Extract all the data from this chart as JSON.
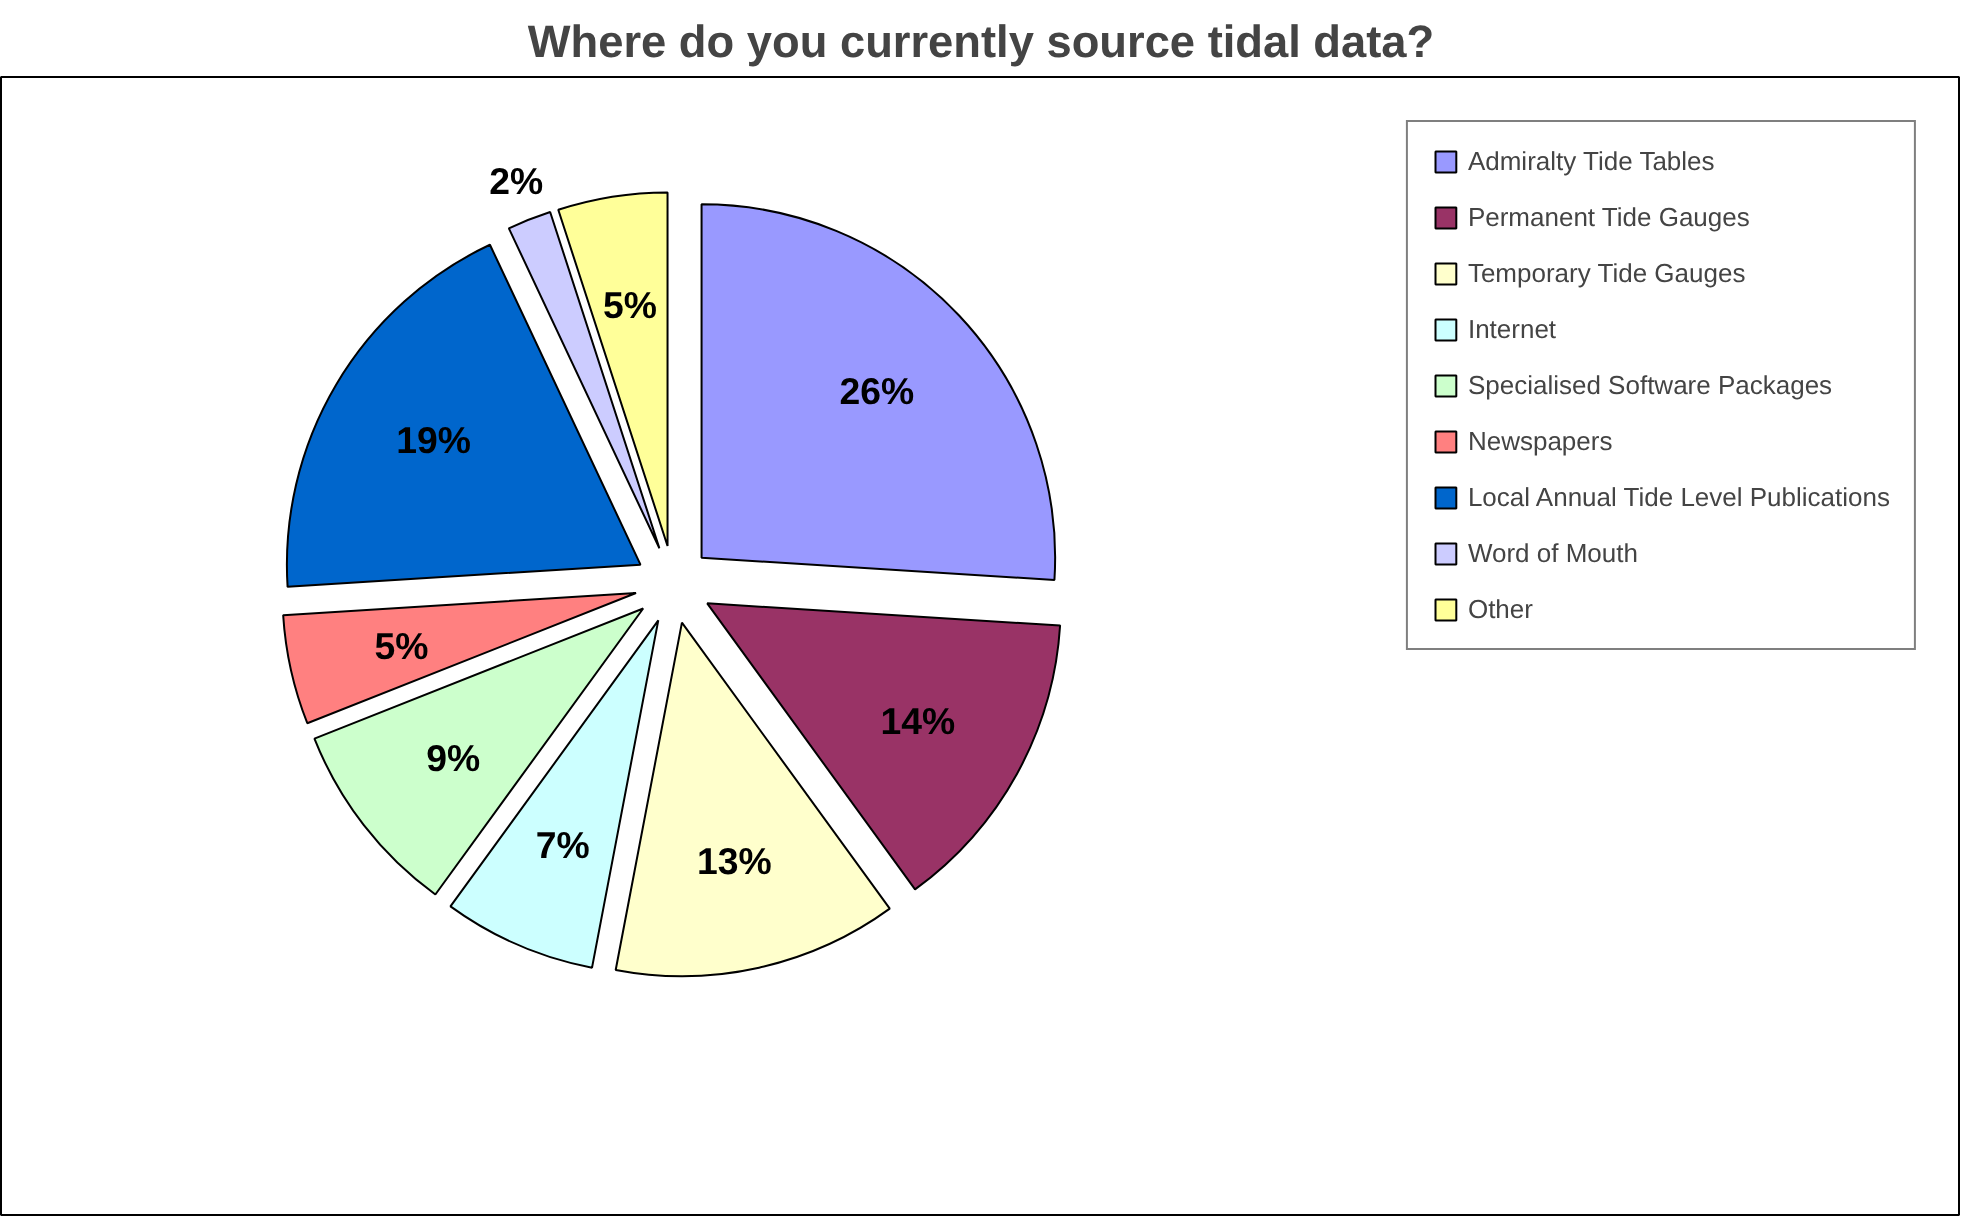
{
  "chart_data": {
    "type": "pie",
    "title": "Where do you currently source tidal data?",
    "categories": [
      "Admiralty Tide Tables",
      "Permanent Tide Gauges",
      "Temporary Tide Gauges",
      "Internet",
      "Specialised Software Packages",
      "Newspapers",
      "Local Annual Tide Level Publications",
      "Word of Mouth",
      "Other"
    ],
    "values": [
      26,
      14,
      13,
      7,
      9,
      5,
      19,
      2,
      5
    ],
    "value_labels": [
      "26%",
      "14%",
      "13%",
      "7%",
      "9%",
      "5%",
      "19%",
      "2%",
      "5%"
    ],
    "colors": [
      "#9999ff",
      "#993366",
      "#ffffcc",
      "#ccffff",
      "#ccffcc",
      "#ff8080",
      "#0066cc",
      "#ccccff",
      "#ffff99"
    ],
    "legend": "right"
  }
}
